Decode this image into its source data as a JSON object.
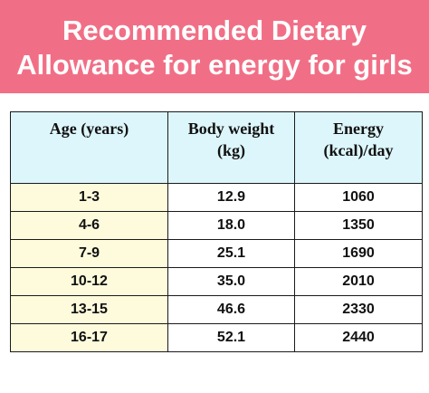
{
  "title": {
    "line1": "Recommended Dietary",
    "line2": "Allowance for energy for girls"
  },
  "table": {
    "headers": {
      "age": "Age (years)",
      "weight_line1": "Body weight",
      "weight_line2": "(kg)",
      "energy_line1": "Energy",
      "energy_line2": "(kcal)/day"
    },
    "rows": [
      {
        "age": "1-3",
        "weight": "12.9",
        "energy": "1060"
      },
      {
        "age": "4-6",
        "weight": "18.0",
        "energy": "1350"
      },
      {
        "age": "7-9",
        "weight": "25.1",
        "energy": "1690"
      },
      {
        "age": "10-12",
        "weight": "35.0",
        "energy": "2010"
      },
      {
        "age": "13-15",
        "weight": "46.6",
        "energy": "2330"
      },
      {
        "age": "16-17",
        "weight": "52.1",
        "energy": "2440"
      }
    ]
  },
  "colors": {
    "banner": "#f16f86",
    "header_fill": "#ddf6fb",
    "age_fill": "#fefbdc"
  }
}
